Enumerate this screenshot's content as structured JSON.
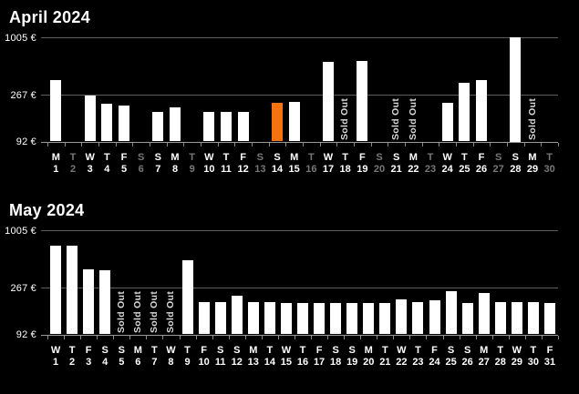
{
  "page": {
    "background": "#000000"
  },
  "colors": {
    "title": "#ffffff",
    "axis_label": "#ffffff",
    "bar": "#ffffff",
    "selected_bar": "#f97210",
    "gridline": "#5e5e5e",
    "baseline": "#999999",
    "tick_color": "#8a8a8a",
    "day_label": "#ffffff",
    "day_label_unavailable": "#787878",
    "sold_out_text": "#d8d8d8"
  },
  "sold_out_label": "Sold Out",
  "y_axis": {
    "scale": "log",
    "tick_labels": [
      "1005 €",
      "267 €",
      "92 €"
    ],
    "tick_values": [
      1005,
      267,
      92
    ],
    "ylim": [
      92,
      1005
    ],
    "currency": "EUR"
  },
  "chart_data": [
    {
      "type": "bar",
      "title": "April 2024",
      "xlabel": "day of month (weekday letter above date)",
      "ylabel": "price",
      "days": [
        {
          "day": 1,
          "weekday": "M",
          "price": 380,
          "status": "available"
        },
        {
          "day": 2,
          "weekday": "T",
          "price": null,
          "status": "unavailable"
        },
        {
          "day": 3,
          "weekday": "W",
          "price": 265,
          "status": "available"
        },
        {
          "day": 4,
          "weekday": "T",
          "price": 220,
          "status": "available"
        },
        {
          "day": 5,
          "weekday": "F",
          "price": 210,
          "status": "available"
        },
        {
          "day": 6,
          "weekday": "S",
          "price": null,
          "status": "unavailable"
        },
        {
          "day": 7,
          "weekday": "S",
          "price": 183,
          "status": "available"
        },
        {
          "day": 8,
          "weekday": "M",
          "price": 203,
          "status": "available"
        },
        {
          "day": 9,
          "weekday": "T",
          "price": null,
          "status": "unavailable"
        },
        {
          "day": 10,
          "weekday": "W",
          "price": 180,
          "status": "available"
        },
        {
          "day": 11,
          "weekday": "T",
          "price": 180,
          "status": "available"
        },
        {
          "day": 12,
          "weekday": "F",
          "price": 180,
          "status": "available"
        },
        {
          "day": 13,
          "weekday": "S",
          "price": null,
          "status": "unavailable"
        },
        {
          "day": 14,
          "weekday": "S",
          "price": 222,
          "status": "selected"
        },
        {
          "day": 15,
          "weekday": "M",
          "price": 227,
          "status": "available"
        },
        {
          "day": 16,
          "weekday": "T",
          "price": null,
          "status": "unavailable"
        },
        {
          "day": 17,
          "weekday": "W",
          "price": 575,
          "status": "available"
        },
        {
          "day": 18,
          "weekday": "T",
          "price": null,
          "status": "sold_out"
        },
        {
          "day": 19,
          "weekday": "F",
          "price": 590,
          "status": "available"
        },
        {
          "day": 20,
          "weekday": "S",
          "price": null,
          "status": "unavailable"
        },
        {
          "day": 21,
          "weekday": "S",
          "price": null,
          "status": "sold_out"
        },
        {
          "day": 22,
          "weekday": "M",
          "price": null,
          "status": "sold_out"
        },
        {
          "day": 23,
          "weekday": "T",
          "price": null,
          "status": "unavailable"
        },
        {
          "day": 24,
          "weekday": "W",
          "price": 222,
          "status": "available"
        },
        {
          "day": 25,
          "weekday": "T",
          "price": 355,
          "status": "available"
        },
        {
          "day": 26,
          "weekday": "F",
          "price": 375,
          "status": "available"
        },
        {
          "day": 27,
          "weekday": "S",
          "price": null,
          "status": "unavailable"
        },
        {
          "day": 28,
          "weekday": "S",
          "price": 1005,
          "status": "available"
        },
        {
          "day": 29,
          "weekday": "M",
          "price": null,
          "status": "sold_out"
        },
        {
          "day": 30,
          "weekday": "T",
          "price": null,
          "status": "unavailable"
        }
      ]
    },
    {
      "type": "bar",
      "title": "May 2024",
      "xlabel": "day of month (weekday letter above date)",
      "ylabel": "price",
      "days": [
        {
          "day": 1,
          "weekday": "W",
          "price": 705,
          "status": "available"
        },
        {
          "day": 2,
          "weekday": "T",
          "price": 705,
          "status": "available"
        },
        {
          "day": 3,
          "weekday": "F",
          "price": 410,
          "status": "available"
        },
        {
          "day": 4,
          "weekday": "S",
          "price": 405,
          "status": "available"
        },
        {
          "day": 5,
          "weekday": "S",
          "price": null,
          "status": "sold_out"
        },
        {
          "day": 6,
          "weekday": "M",
          "price": null,
          "status": "sold_out"
        },
        {
          "day": 7,
          "weekday": "T",
          "price": null,
          "status": "sold_out"
        },
        {
          "day": 8,
          "weekday": "W",
          "price": null,
          "status": "sold_out"
        },
        {
          "day": 9,
          "weekday": "T",
          "price": 500,
          "status": "available"
        },
        {
          "day": 10,
          "weekday": "F",
          "price": 192,
          "status": "available"
        },
        {
          "day": 11,
          "weekday": "S",
          "price": 192,
          "status": "available"
        },
        {
          "day": 12,
          "weekday": "S",
          "price": 225,
          "status": "available"
        },
        {
          "day": 13,
          "weekday": "M",
          "price": 192,
          "status": "available"
        },
        {
          "day": 14,
          "weekday": "T",
          "price": 192,
          "status": "available"
        },
        {
          "day": 15,
          "weekday": "W",
          "price": 188,
          "status": "available"
        },
        {
          "day": 16,
          "weekday": "T",
          "price": 190,
          "status": "available"
        },
        {
          "day": 17,
          "weekday": "F",
          "price": 190,
          "status": "available"
        },
        {
          "day": 18,
          "weekday": "S",
          "price": 190,
          "status": "available"
        },
        {
          "day": 19,
          "weekday": "S",
          "price": 190,
          "status": "available"
        },
        {
          "day": 20,
          "weekday": "M",
          "price": 190,
          "status": "available"
        },
        {
          "day": 21,
          "weekday": "T",
          "price": 190,
          "status": "available"
        },
        {
          "day": 22,
          "weekday": "W",
          "price": 205,
          "status": "available"
        },
        {
          "day": 23,
          "weekday": "T",
          "price": 192,
          "status": "available"
        },
        {
          "day": 24,
          "weekday": "F",
          "price": 200,
          "status": "available"
        },
        {
          "day": 25,
          "weekday": "S",
          "price": 250,
          "status": "available"
        },
        {
          "day": 26,
          "weekday": "S",
          "price": 188,
          "status": "available"
        },
        {
          "day": 27,
          "weekday": "M",
          "price": 240,
          "status": "available"
        },
        {
          "day": 28,
          "weekday": "T",
          "price": 192,
          "status": "available"
        },
        {
          "day": 29,
          "weekday": "W",
          "price": 192,
          "status": "available"
        },
        {
          "day": 30,
          "weekday": "T",
          "price": 192,
          "status": "available"
        },
        {
          "day": 31,
          "weekday": "F",
          "price": 190,
          "status": "available"
        }
      ]
    }
  ]
}
